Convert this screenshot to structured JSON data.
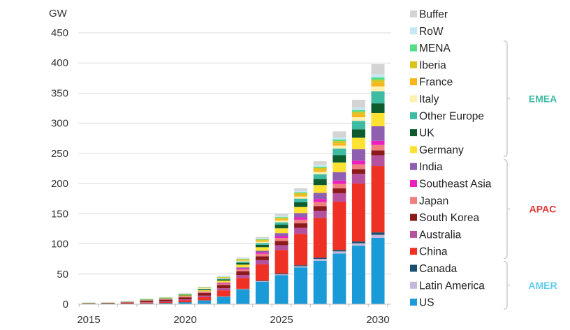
{
  "chart_data": {
    "type": "bar",
    "stacked": true,
    "title": "",
    "ylabel": "GW",
    "xlabel": "",
    "ylim": [
      0,
      450
    ],
    "yticks": [
      0,
      50,
      100,
      150,
      200,
      250,
      300,
      350,
      400,
      450
    ],
    "xtick_labels": [
      "2015",
      "2020",
      "2025",
      "2030"
    ],
    "grid": true,
    "legend_position": "right",
    "categories": [
      "2015",
      "2016",
      "2017",
      "2018",
      "2019",
      "2020",
      "2021",
      "2022",
      "2023",
      "2024",
      "2025",
      "2026",
      "2027",
      "2028",
      "2029",
      "2030"
    ],
    "series": [
      {
        "name": "US",
        "color": "#1a9ad6",
        "values": [
          0.3,
          0.4,
          0.6,
          1.2,
          1.8,
          3,
          6,
          12,
          24,
          37,
          48,
          61,
          72,
          84,
          97,
          110
        ]
      },
      {
        "name": "Latin America",
        "color": "#c5b8dc",
        "values": [
          0,
          0,
          0,
          0.1,
          0.1,
          0.2,
          0.3,
          0.5,
          0.8,
          1,
          1.5,
          2,
          3,
          3.5,
          4,
          5
        ]
      },
      {
        "name": "Canada",
        "color": "#1b4f6e",
        "values": [
          0,
          0,
          0,
          0.1,
          0.1,
          0.2,
          0.3,
          0.5,
          0.8,
          1,
          1.3,
          1.6,
          2,
          2.5,
          3,
          4
        ]
      },
      {
        "name": "China",
        "color": "#ee3124",
        "values": [
          0.2,
          0.3,
          0.6,
          1.2,
          1.5,
          3,
          5,
          10,
          18,
          27,
          39,
          52,
          66,
          80,
          96,
          110
        ]
      },
      {
        "name": "Australia",
        "color": "#b5529f",
        "values": [
          0.2,
          0.2,
          0.3,
          0.6,
          1,
          1.5,
          2.5,
          3.5,
          5,
          7,
          8,
          10,
          12,
          14,
          16,
          18
        ]
      },
      {
        "name": "South Korea",
        "color": "#8b1a1a",
        "values": [
          0.8,
          0.9,
          1.5,
          2.5,
          2.8,
          3.5,
          4.5,
          5.5,
          6,
          6.5,
          7,
          7.5,
          7.5,
          8,
          8,
          8
        ]
      },
      {
        "name": "Japan",
        "color": "#f08080",
        "values": [
          0.2,
          0.2,
          0.3,
          0.5,
          0.6,
          1,
          1.5,
          2,
          3,
          4,
          5,
          6,
          7,
          7.5,
          8,
          9
        ]
      },
      {
        "name": "Southeast Asia",
        "color": "#ec1fbf",
        "values": [
          0,
          0,
          0,
          0.1,
          0.2,
          0.3,
          0.5,
          1,
          1.5,
          2,
          3,
          4,
          5,
          5.5,
          6,
          7
        ]
      },
      {
        "name": "India",
        "color": "#8e5fb0",
        "values": [
          0,
          0,
          0,
          0.1,
          0.2,
          0.3,
          0.5,
          1,
          2,
          3,
          5,
          7,
          10,
          14,
          19,
          24
        ]
      },
      {
        "name": "Germany",
        "color": "#fde233",
        "values": [
          0.2,
          0.3,
          0.6,
          1,
          1.2,
          1.5,
          2,
          3,
          4.5,
          6,
          8,
          10,
          13,
          16,
          19,
          22
        ]
      },
      {
        "name": "UK",
        "color": "#0e5b2e",
        "values": [
          0.1,
          0.1,
          0.2,
          0.5,
          0.7,
          1,
          1.5,
          2,
          3,
          4,
          6,
          8,
          10,
          12,
          14,
          16
        ]
      },
      {
        "name": "Other Europe",
        "color": "#3dbba3",
        "values": [
          0.5,
          0.4,
          0.2,
          0.3,
          0.4,
          0.6,
          1,
          1.5,
          2,
          3,
          4,
          6,
          8,
          11,
          14,
          20
        ]
      },
      {
        "name": "Italy",
        "color": "#fdf0b0",
        "values": [
          0.1,
          0.1,
          0.2,
          0.3,
          0.4,
          0.5,
          0.8,
          1,
          1.5,
          2,
          3,
          3.5,
          4,
          5,
          6,
          8
        ]
      },
      {
        "name": "France",
        "color": "#f8b61e",
        "values": [
          0.1,
          0.1,
          0.2,
          0.3,
          0.4,
          0.5,
          0.8,
          1,
          1.5,
          2,
          2.5,
          3,
          3.5,
          4,
          5,
          6
        ]
      },
      {
        "name": "Iberia",
        "color": "#d9c41f",
        "values": [
          0,
          0,
          0,
          0.1,
          0.1,
          0.2,
          0.3,
          0.5,
          1,
          1.5,
          2,
          2.5,
          3,
          3.5,
          4,
          5
        ]
      },
      {
        "name": "MENA",
        "color": "#55dd88",
        "values": [
          0,
          0,
          0,
          0.1,
          0.1,
          0.2,
          0.3,
          0.5,
          0.7,
          1,
          1.2,
          1.5,
          2,
          2.5,
          3,
          4
        ]
      },
      {
        "name": "RoW",
        "color": "#c6e8f6",
        "values": [
          0.1,
          0.1,
          0.1,
          0.2,
          0.3,
          0.4,
          0.5,
          0.8,
          1,
          1.5,
          2,
          2.5,
          3,
          3.5,
          4,
          5
        ]
      },
      {
        "name": "Buffer",
        "color": "#d4d4d4",
        "values": [
          0,
          0,
          0,
          0,
          0,
          0.1,
          0.2,
          0.5,
          1,
          2,
          3,
          4,
          6,
          10,
          13,
          17
        ]
      }
    ],
    "legend_order": [
      "Buffer",
      "RoW",
      "MENA",
      "Iberia",
      "France",
      "Italy",
      "Other Europe",
      "UK",
      "Germany",
      "India",
      "Southeast Asia",
      "Japan",
      "South Korea",
      "Australia",
      "China",
      "Canada",
      "Latin America",
      "US"
    ],
    "groups": [
      {
        "name": "EMEA",
        "color": "#3dbba3",
        "members": [
          "MENA",
          "Iberia",
          "France",
          "Italy",
          "Other Europe",
          "UK",
          "Germany"
        ]
      },
      {
        "name": "APAC",
        "color": "#e03a3a",
        "members": [
          "India",
          "Southeast Asia",
          "Japan",
          "South Korea",
          "Australia",
          "China"
        ]
      },
      {
        "name": "AMER",
        "color": "#5fcdef",
        "members": [
          "Canada",
          "Latin America",
          "US"
        ]
      }
    ]
  }
}
